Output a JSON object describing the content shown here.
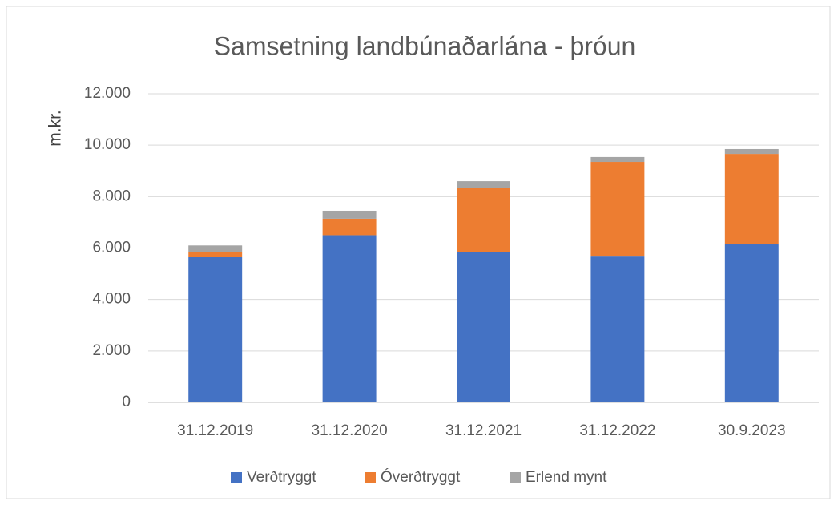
{
  "chart_data": {
    "type": "stacked_bar",
    "title": "Samsetning landbúnaðarlána - þróun",
    "y_label": "m.kr.",
    "categories": [
      "31.12.2019",
      "31.12.2020",
      "31.12.2021",
      "31.12.2022",
      "30.9.2023"
    ],
    "series": [
      {
        "name": "Verðtryggt",
        "color": "#4472c4",
        "values": [
          5650,
          6500,
          5830,
          5700,
          6140
        ]
      },
      {
        "name": "Óverðtryggt",
        "color": "#ed7d31",
        "values": [
          200,
          640,
          2520,
          3650,
          3520
        ]
      },
      {
        "name": "Erlend mynt",
        "color": "#a5a5a5",
        "values": [
          250,
          310,
          250,
          190,
          190
        ]
      }
    ],
    "ylim": [
      0,
      12000
    ],
    "yticks": [
      0,
      {
        "value": 2000,
        "label": "2.000"
      },
      {
        "value": 4000,
        "label": "4.000"
      },
      {
        "value": 6000,
        "label": "6.000"
      },
      {
        "value": 8000,
        "label": "8.000"
      },
      {
        "value": 10000,
        "label": "10.000"
      },
      {
        "value": 12000,
        "label": "12.000"
      }
    ],
    "grid": true,
    "legend": "bottom"
  }
}
